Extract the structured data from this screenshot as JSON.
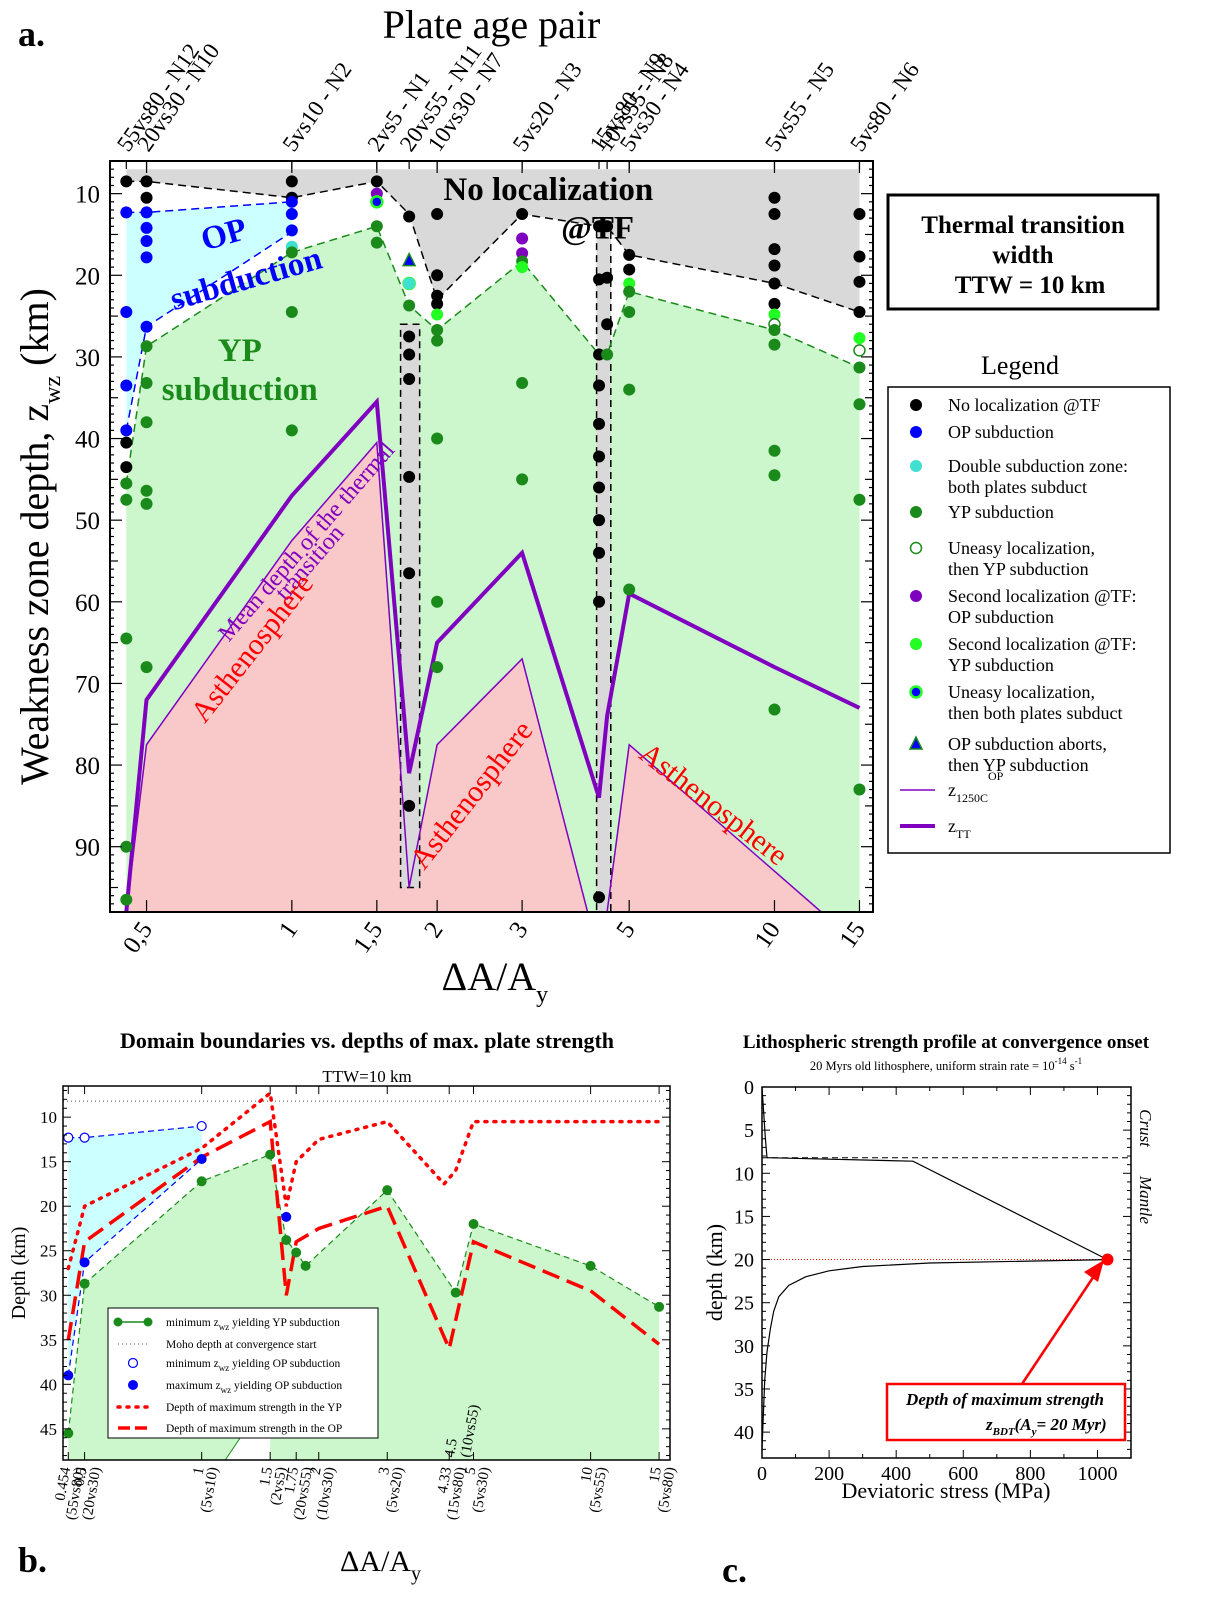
{
  "panel_labels": {
    "a": "a.",
    "b": "b.",
    "c": "c."
  },
  "colors": {
    "grey": "#d9d9d9",
    "cyan": "#ccffff",
    "green": "#ccf7cc",
    "pink": "#f9c8c8",
    "black": "#000000",
    "blue": "#0000ff",
    "darkgreen": "#1a8a1a",
    "purple": "#8000c0",
    "lime": "#22ff22",
    "turquoise": "#40e0d0",
    "red": "#ff0000"
  },
  "chart_data": [
    {
      "id": "a",
      "type": "scatter",
      "top_title": "Plate age pair",
      "xlabel": "ΔA/A",
      "xlabel_sub": "y",
      "ylabel": "Weakness zone depth, z",
      "ylabel_sub": "wz",
      "ylabel_unit": "(km)",
      "xscale": "log",
      "xlim": [
        0.42,
        16
      ],
      "ylim": [
        98,
        6
      ],
      "y_ticks": [
        10,
        20,
        30,
        40,
        50,
        60,
        70,
        80,
        90
      ],
      "x_ticks": [
        {
          "value": 0.5,
          "label": "0,5"
        },
        {
          "value": 1,
          "label": "1"
        },
        {
          "value": 1.5,
          "label": "1,5"
        },
        {
          "value": 2,
          "label": "2"
        },
        {
          "value": 3,
          "label": "3"
        },
        {
          "value": 5,
          "label": "5"
        },
        {
          "value": 10,
          "label": "10"
        },
        {
          "value": 15,
          "label": "15"
        }
      ],
      "pair_labels": [
        {
          "x": 0.454,
          "text": "55vs80 - N12"
        },
        {
          "x": 0.5,
          "text": "20vs30 - N10"
        },
        {
          "x": 1,
          "text": "5vs10 - N2"
        },
        {
          "x": 1.5,
          "text": "2vs5 - N1"
        },
        {
          "x": 1.75,
          "text": "20vs55 - N11"
        },
        {
          "x": 2,
          "text": "10vs30 - N7"
        },
        {
          "x": 3,
          "text": "5vs20 - N3"
        },
        {
          "x": 4.33,
          "text": "15vs80 - N9"
        },
        {
          "x": 4.5,
          "text": "10vs55 - N8"
        },
        {
          "x": 5,
          "text": "5vs30 - N4"
        },
        {
          "x": 10,
          "text": "5vs55 - N5"
        },
        {
          "x": 15,
          "text": "5vs80 - N6"
        }
      ],
      "region_labels": {
        "no_loc": "No localization",
        "no_loc2": "@TF",
        "op": "OP",
        "op2": "subduction",
        "yp": "YP",
        "yp2": "subduction",
        "astheno": "Asthenosphere",
        "mean_depth": "Mean depth of the thermal",
        "mean_depth2": "transition"
      },
      "boundaries": {
        "noloc_top": {
          "x": [
            0.454,
            0.5,
            1,
            1.5,
            1.75,
            2,
            3,
            4.33,
            4.5,
            5,
            10,
            15
          ],
          "y": [
            7,
            7,
            7,
            7,
            7,
            7,
            7,
            7,
            7,
            7,
            7,
            7
          ]
        },
        "noloc_bottom": {
          "x": [
            0.454,
            0.5,
            1,
            1.5,
            1.75,
            2,
            3,
            4.33,
            4.5,
            5,
            10,
            15
          ],
          "y": [
            8.5,
            8.5,
            10.5,
            8.5,
            12.5,
            23,
            12.5,
            14,
            14,
            17.5,
            21,
            24.5
          ]
        },
        "op_top": {
          "x": [
            0.454,
            0.5,
            1
          ],
          "y": [
            12.3,
            12.3,
            11
          ]
        },
        "op_bottom": {
          "x": [
            0.454,
            0.5,
            1
          ],
          "y": [
            39,
            26.3,
            14.7
          ]
        },
        "yp_top": {
          "x": [
            0.454,
            0.5,
            1,
            1.5,
            1.75,
            2,
            3,
            4.33,
            4.5,
            5,
            10,
            15
          ],
          "y": [
            45.5,
            28.7,
            17.2,
            14,
            23.7,
            26.7,
            18.3,
            29.7,
            29.7,
            22,
            26.7,
            31.3
          ]
        },
        "ztt": {
          "x": [
            0.454,
            0.5,
            1,
            1.5,
            1.75,
            2,
            3,
            4.33,
            4.5,
            5,
            10,
            15
          ],
          "y": [
            98,
            72,
            47,
            35.5,
            81,
            65,
            54,
            84,
            74,
            59,
            68,
            73
          ]
        },
        "z1250": {
          "x": [
            0.454,
            0.5,
            1,
            1.5,
            1.75,
            2,
            3,
            4.1,
            4.5,
            5,
            10,
            12.5
          ],
          "y": [
            98,
            77.5,
            52.5,
            40.5,
            95,
            77.5,
            67,
            98,
            98,
            77.5,
            93,
            98
          ]
        }
      },
      "dashed_boxes": [
        {
          "x_from": 1.68,
          "x_to": 1.84,
          "y_from": 26,
          "y_to": 95
        },
        {
          "x_from": 4.28,
          "x_to": 4.58,
          "y_from": 13.5,
          "y_to": 98
        }
      ],
      "points": [
        {
          "x": 0.454,
          "y": [
            8.5,
            12.3,
            24.5,
            33.5,
            39,
            40.5,
            43.5,
            45.5,
            47.5,
            64.5,
            90,
            96.5
          ],
          "kind": [
            "no_loc",
            "op",
            "op",
            "op",
            "op",
            "no_loc",
            "no_loc",
            "yp",
            "yp",
            "yp",
            "yp",
            "yp"
          ]
        },
        {
          "x": 0.5,
          "y": [
            8.5,
            10.5,
            12.3,
            14.2,
            15.8,
            17.8,
            26.3,
            28.7,
            33.2,
            38,
            46.4,
            48,
            68
          ],
          "kind": [
            "no_loc",
            "no_loc",
            "op",
            "op",
            "op",
            "op",
            "op",
            "yp",
            "yp",
            "yp",
            "yp",
            "yp",
            "yp"
          ]
        },
        {
          "x": 1,
          "y": [
            8.5,
            10.5,
            11,
            12.5,
            14.5,
            16.5,
            17.2,
            24.5,
            39
          ],
          "kind": [
            "no_loc",
            "no_loc",
            "op",
            "op",
            "op",
            "double",
            "yp",
            "yp",
            "yp"
          ]
        },
        {
          "x": 1.5,
          "y": [
            8.5,
            10,
            11,
            14,
            16
          ],
          "kind": [
            "no_loc",
            "second_op",
            "uneasy_both",
            "yp",
            "yp"
          ]
        },
        {
          "x": 1.75,
          "y": [
            12.8,
            18.2,
            21,
            21,
            23.7,
            27.5,
            29.7,
            32.7,
            44.7,
            56.5,
            85
          ],
          "kind": [
            "no_loc",
            "abort",
            "uneasy_both",
            "double",
            "yp",
            "no_loc",
            "no_loc",
            "no_loc",
            "no_loc",
            "no_loc",
            "no_loc"
          ]
        },
        {
          "x": 2,
          "y": [
            12.5,
            20,
            22.5,
            23.5,
            24.8,
            26.7,
            28,
            40,
            60,
            68
          ],
          "kind": [
            "no_loc",
            "no_loc",
            "no_loc",
            "no_loc",
            "second_yp",
            "yp",
            "yp",
            "yp",
            "yp",
            "yp"
          ]
        },
        {
          "x": 3,
          "y": [
            12.5,
            15.5,
            17.3,
            18.3,
            19,
            33.2,
            45
          ],
          "kind": [
            "no_loc",
            "second_op",
            "second_op",
            "yp",
            "second_yp",
            "yp",
            "yp"
          ]
        },
        {
          "x": 4.33,
          "y": [
            14,
            20.5,
            29.7,
            33.5,
            38.2,
            42.2,
            46,
            50,
            54,
            60,
            96.2
          ],
          "kind": [
            "no_loc",
            "no_loc",
            "no_loc",
            "no_loc",
            "no_loc",
            "no_loc",
            "no_loc",
            "no_loc",
            "no_loc",
            "no_loc",
            "no_loc"
          ]
        },
        {
          "x": 4.5,
          "y": [
            14,
            20.3,
            26,
            29.7
          ],
          "kind": [
            "no_loc",
            "no_loc",
            "no_loc",
            "yp"
          ]
        },
        {
          "x": 5,
          "y": [
            17.5,
            19.3,
            21,
            22,
            24.5,
            34,
            58.5
          ],
          "kind": [
            "no_loc",
            "no_loc",
            "second_yp",
            "yp",
            "yp",
            "yp",
            "yp"
          ]
        },
        {
          "x": 10,
          "y": [
            10.5,
            12.5,
            16.8,
            18.8,
            21,
            23.5,
            24.8,
            26,
            26.7,
            28.5,
            41.5,
            44.5,
            73.2
          ],
          "kind": [
            "no_loc",
            "no_loc",
            "no_loc",
            "no_loc",
            "no_loc",
            "no_loc",
            "second_yp",
            "uneasy_yp",
            "yp",
            "yp",
            "yp",
            "yp",
            "yp"
          ]
        },
        {
          "x": 15,
          "y": [
            12.5,
            17.7,
            20.8,
            24.5,
            27.7,
            29.2,
            31.3,
            35.8,
            47.5,
            83
          ],
          "kind": [
            "no_loc",
            "no_loc",
            "no_loc",
            "no_loc",
            "second_yp",
            "uneasy_yp",
            "yp",
            "yp",
            "yp",
            "yp"
          ]
        }
      ]
    },
    {
      "id": "b",
      "type": "line",
      "title": "Domain boundaries vs. depths of max. plate strength",
      "subtitle": "TTW=10 km",
      "xlabel": "ΔA/A",
      "xlabel_sub": "y",
      "ylabel": "Depth (km)",
      "xscale": "log",
      "xlim": [
        0.44,
        16
      ],
      "ylim": [
        48.5,
        6.5
      ],
      "y_ticks": [
        10,
        15,
        20,
        25,
        30,
        35,
        40,
        45
      ],
      "x_ticks": [
        {
          "value": 0.454,
          "label": "0.454",
          "sub": "(55vs80)"
        },
        {
          "value": 0.5,
          "label": "0.5",
          "sub": "(20vs30)"
        },
        {
          "value": 1,
          "label": "1",
          "sub": "(5vs10)"
        },
        {
          "value": 1.5,
          "label": "1.5",
          "sub": "(2vs5)"
        },
        {
          "value": 1.75,
          "label": "1.75",
          "sub": "(20vs55)"
        },
        {
          "value": 2,
          "label": "2",
          "sub": "(10vs30)"
        },
        {
          "value": 3,
          "label": "3",
          "sub": "(5vs20)"
        },
        {
          "value": 4.33,
          "label": "4.33",
          "sub": "(15vs80)"
        },
        {
          "value": 5,
          "label": "5",
          "sub": "(5vs30)"
        },
        {
          "value": 10,
          "label": "10",
          "sub": "(5vs55)"
        },
        {
          "value": 15,
          "label": "15",
          "sub": "(5vs80)"
        }
      ],
      "inner_annotation": {
        "value": 4.5,
        "label": "4.5",
        "sub": "(10vs55)"
      },
      "moho_depth": 8.2,
      "series": [
        {
          "name": "minimum z",
          "name_sub": "wz",
          "name_tail": " yielding YP subduction",
          "style": "green_dash_marker",
          "x": [
            0.454,
            0.5,
            1,
            1.5,
            1.65,
            1.75,
            1.85,
            3,
            4.5,
            5,
            10,
            15
          ],
          "y": [
            45.5,
            28.7,
            17.2,
            14.2,
            23.8,
            25.2,
            26.7,
            18.2,
            29.7,
            22,
            26.7,
            31.3
          ]
        },
        {
          "name": "Moho depth at convergence start",
          "style": "dotted"
        },
        {
          "name": "minimum z",
          "name_sub": "wz",
          "name_tail": " yielding OP subduction",
          "style": "blue_open",
          "x": [
            0.454,
            0.5,
            1
          ],
          "y": [
            12.3,
            12.3,
            11
          ]
        },
        {
          "name": "maximum z",
          "name_sub": "wz",
          "name_tail": " yielding OP subduction",
          "style": "blue_filled",
          "x": [
            0.454,
            0.5,
            1,
            1.65
          ],
          "y": [
            39,
            26.3,
            14.7,
            21.2
          ]
        },
        {
          "name": "Depth of maximum strength in the YP",
          "style": "red_dotted",
          "x": [
            0.454,
            0.5,
            1,
            1.5,
            1.65,
            1.75,
            2,
            3,
            4.2,
            4.5,
            5,
            10,
            15
          ],
          "y": [
            27,
            20,
            13.5,
            7.3,
            20,
            15,
            12.5,
            10.5,
            17.5,
            16,
            10.5,
            10.5,
            10.5
          ]
        },
        {
          "name": "Depth of maximum strength in the OP",
          "style": "red_dashdot",
          "x": [
            0.454,
            0.5,
            1,
            1.5,
            1.65,
            1.75,
            2,
            3,
            4.33,
            5,
            10,
            15
          ],
          "y": [
            35,
            24,
            14.5,
            10.5,
            30,
            24,
            22.5,
            20,
            36,
            24,
            29.5,
            35.5
          ]
        }
      ]
    },
    {
      "id": "c",
      "type": "line",
      "title": "Lithospheric strength profile at convergence onset",
      "subtitle_main": "20 Myrs old lithosphere, uniform strain rate = 10",
      "subtitle_exp": "-14",
      "subtitle_unit": " s",
      "subtitle_unit_exp": "-1",
      "xlabel": "Deviatoric stress (MPa)",
      "ylabel": "depth (km)",
      "xlim": [
        0,
        1100
      ],
      "ylim": [
        43,
        0
      ],
      "x_ticks": [
        0,
        200,
        400,
        600,
        800,
        1000
      ],
      "y_ticks": [
        0,
        5,
        10,
        15,
        20,
        25,
        30,
        35,
        40
      ],
      "crust_label": "Crust",
      "mantle_label": "Mantle",
      "moho_depth": 8.2,
      "series": [
        {
          "name": "crust",
          "x": [
            0,
            5,
            10,
            15
          ],
          "y": [
            0,
            3,
            6,
            8.2
          ]
        },
        {
          "name": "mantle_brittle",
          "x": [
            15,
            450,
            1030
          ],
          "y": [
            8.2,
            8.6,
            20
          ]
        },
        {
          "name": "mantle_ductile",
          "x": [
            1030,
            500,
            300,
            200,
            130,
            80,
            50,
            35,
            25,
            15,
            8,
            0
          ],
          "y": [
            20,
            20.4,
            20.8,
            21.3,
            22,
            23,
            24.3,
            26,
            28,
            30.7,
            34,
            42
          ]
        }
      ],
      "max_point": {
        "x": 1030,
        "y": 20
      },
      "annotation_line1": "Depth of maximum strength",
      "annotation_z": "z",
      "annotation_z_sub": "BDT",
      "annotation_paren": "(A",
      "annotation_paren_sub": "y",
      "annotation_paren_tail": "= 20 Myr)"
    }
  ],
  "legend_a": {
    "title": "Legend",
    "items": [
      {
        "kind": "no_loc",
        "lines": [
          "No localization @TF"
        ]
      },
      {
        "kind": "op",
        "lines": [
          "OP subduction"
        ]
      },
      {
        "kind": "double",
        "lines": [
          "Double subduction zone:",
          "both plates subduct"
        ]
      },
      {
        "kind": "yp",
        "lines": [
          "YP subduction"
        ]
      },
      {
        "kind": "uneasy_yp",
        "lines": [
          "Uneasy localization,",
          "then YP subduction"
        ]
      },
      {
        "kind": "second_op",
        "lines": [
          "Second localization @TF:",
          "OP subduction"
        ]
      },
      {
        "kind": "second_yp",
        "lines": [
          "Second localization @TF:",
          "YP subduction"
        ]
      },
      {
        "kind": "uneasy_both",
        "lines": [
          "Uneasy  localization,",
          "then both plates subduct"
        ]
      },
      {
        "kind": "abort",
        "lines": [
          "OP subduction aborts,",
          "then YP subduction"
        ]
      },
      {
        "kind": "z1250",
        "lines": [
          "z"
        ],
        "sub": "1250C",
        "sup": "OP"
      },
      {
        "kind": "ztt",
        "lines": [
          "z"
        ],
        "sub": "TT"
      }
    ]
  },
  "ttw_box": {
    "line1": "Thermal transition",
    "line2": "width",
    "line3": "TTW = 10 km"
  }
}
